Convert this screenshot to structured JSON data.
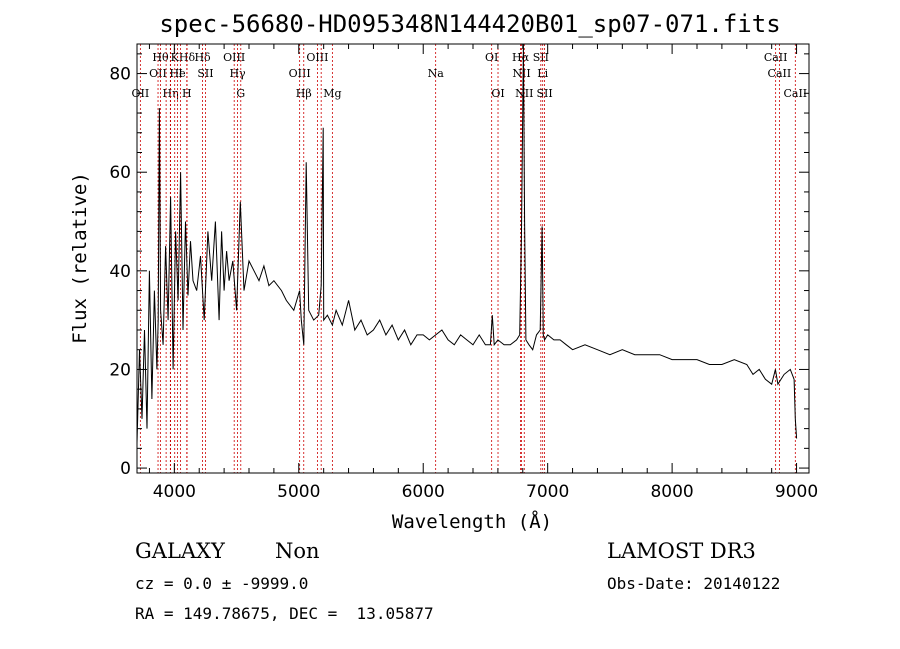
{
  "chart_data": {
    "type": "line",
    "title": "spec-56680-HD095348N144420B01_sp07-071.fits",
    "xlabel": "Wavelength (Å)",
    "ylabel": "Flux (relative)",
    "xlim": [
      3700,
      9100
    ],
    "ylim": [
      -1,
      86
    ],
    "xticks": [
      4000,
      5000,
      6000,
      7000,
      8000,
      9000
    ],
    "yticks": [
      0,
      20,
      40,
      60,
      80
    ],
    "series": [
      {
        "name": "flux",
        "x": [
          3700,
          3720,
          3740,
          3760,
          3780,
          3800,
          3820,
          3840,
          3860,
          3870,
          3880,
          3890,
          3910,
          3930,
          3950,
          3970,
          3990,
          4010,
          4030,
          4050,
          4070,
          4090,
          4110,
          4130,
          4150,
          4180,
          4210,
          4240,
          4270,
          4300,
          4330,
          4360,
          4380,
          4400,
          4420,
          4440,
          4470,
          4500,
          4530,
          4560,
          4600,
          4640,
          4680,
          4720,
          4760,
          4800,
          4861,
          4900,
          4960,
          5007,
          5020,
          5040,
          5060,
          5080,
          5120,
          5160,
          5180,
          5196,
          5200,
          5230,
          5270,
          5300,
          5350,
          5400,
          5450,
          5500,
          5550,
          5600,
          5650,
          5700,
          5750,
          5800,
          5850,
          5900,
          5950,
          6000,
          6050,
          6100,
          6150,
          6200,
          6250,
          6300,
          6350,
          6400,
          6450,
          6500,
          6540,
          6555,
          6570,
          6600,
          6650,
          6700,
          6750,
          6775,
          6790,
          6805,
          6815,
          6825,
          6850,
          6880,
          6910,
          6940,
          6955,
          6965,
          6975,
          7000,
          7050,
          7100,
          7150,
          7200,
          7300,
          7400,
          7500,
          7600,
          7700,
          7800,
          7900,
          8000,
          8100,
          8200,
          8300,
          8400,
          8500,
          8600,
          8650,
          8700,
          8750,
          8800,
          8830,
          8850,
          8900,
          8950,
          8980,
          8990,
          9000
        ],
        "values": [
          5,
          24,
          10,
          28,
          8,
          40,
          14,
          36,
          20,
          30,
          73,
          32,
          25,
          45,
          30,
          55,
          20,
          48,
          34,
          60,
          28,
          50,
          35,
          46,
          38,
          36,
          43,
          30,
          48,
          38,
          50,
          30,
          48,
          36,
          44,
          38,
          42,
          32,
          54,
          36,
          42,
          40,
          38,
          41,
          37,
          38,
          36,
          34,
          32,
          36,
          30,
          25,
          62,
          32,
          30,
          31,
          37,
          69,
          30,
          31,
          29,
          32,
          29,
          34,
          28,
          30,
          27,
          28,
          30,
          27,
          29,
          26,
          28,
          25,
          27,
          27,
          26,
          27,
          28,
          26,
          25,
          27,
          26,
          25,
          27,
          25,
          25,
          31,
          25,
          26,
          25,
          25,
          26,
          27,
          48,
          88,
          50,
          26,
          25,
          24,
          27,
          28,
          49,
          27,
          26,
          27,
          26,
          26,
          25,
          24,
          25,
          24,
          23,
          24,
          23,
          23,
          23,
          22,
          22,
          22,
          21,
          21,
          22,
          21,
          19,
          20,
          18,
          17,
          20,
          17,
          19,
          20,
          18,
          10,
          6
        ]
      }
    ],
    "lines": [
      {
        "w": 3727,
        "label": "OII",
        "row": 3
      },
      {
        "w": 3869,
        "label": "OII",
        "row": 2
      },
      {
        "w": 3889,
        "label": "Hθ",
        "row": 1
      },
      {
        "w": 3970,
        "label": "Hη",
        "row": 3
      },
      {
        "w": 4026,
        "label": "He",
        "row": 2
      },
      {
        "w": 3934,
        "label": "",
        "row": 0
      },
      {
        "w": 4102,
        "label": "Hδ",
        "row": 1
      },
      {
        "w": 3968,
        "label": "",
        "row": 0
      },
      {
        "w": 4003,
        "label": "K",
        "row": 1
      },
      {
        "w": 4100,
        "label": "H",
        "row": 3
      },
      {
        "w": 4050,
        "label": "I",
        "row": 2
      },
      {
        "w": 4227,
        "label": "Hδ",
        "row": 1
      },
      {
        "w": 4250,
        "label": "SII",
        "row": 2
      },
      {
        "w": 4481,
        "label": "OIII",
        "row": 1
      },
      {
        "w": 4508,
        "label": "Hγ",
        "row": 2
      },
      {
        "w": 4534,
        "label": "G",
        "row": 3
      },
      {
        "w": 5007,
        "label": "OIII",
        "row": 2
      },
      {
        "w": 5040,
        "label": "Hβ",
        "row": 3
      },
      {
        "w": 5150,
        "label": "OIII",
        "row": 1
      },
      {
        "w": 5180,
        "label": "",
        "row": 0
      },
      {
        "w": 5270,
        "label": "Mg",
        "row": 3
      },
      {
        "w": 6100,
        "label": "Na",
        "row": 2
      },
      {
        "w": 6550,
        "label": "OI",
        "row": 1
      },
      {
        "w": 6601,
        "label": "OI",
        "row": 3
      },
      {
        "w": 6782,
        "label": "Hα",
        "row": 1
      },
      {
        "w": 6790,
        "label": "NII",
        "row": 2
      },
      {
        "w": 6812,
        "label": "NII",
        "row": 3
      },
      {
        "w": 6945,
        "label": "SII",
        "row": 1
      },
      {
        "w": 6960,
        "label": "Li",
        "row": 2
      },
      {
        "w": 6975,
        "label": "SII",
        "row": 3
      },
      {
        "w": 8832,
        "label": "CaII",
        "row": 1
      },
      {
        "w": 8862,
        "label": "CaII",
        "row": 2
      },
      {
        "w": 8990,
        "label": "CaII",
        "row": 3
      }
    ]
  },
  "info": {
    "class": "GALAXY",
    "subclass": "Non",
    "survey": "LAMOST DR3",
    "cz": "cz = 0.0 ± -9999.0",
    "obsdate": "Obs-Date: 20140122",
    "radec": "RA = 149.78675, DEC =  13.05877"
  },
  "colors": {
    "line": "#000000",
    "marker": "#cc0000"
  }
}
